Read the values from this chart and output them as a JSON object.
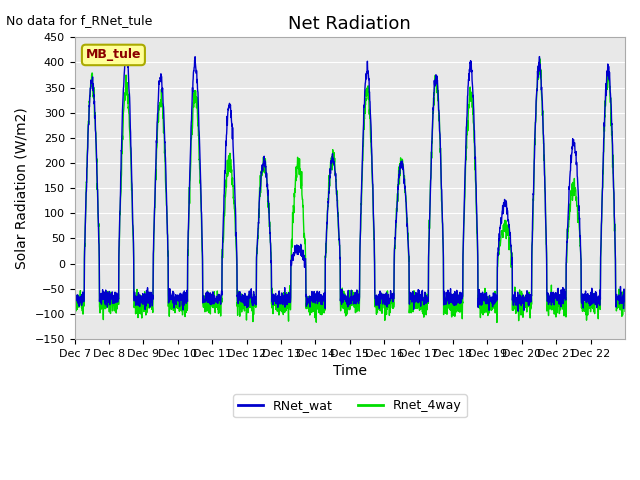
{
  "title": "Net Radiation",
  "top_left_text": "No data for f_RNet_tule",
  "box_label": "MB_tule",
  "ylabel": "Solar Radiation (W/m2)",
  "xlabel": "Time",
  "ylim": [
    -150,
    450
  ],
  "yticks": [
    -150,
    -100,
    -50,
    0,
    50,
    100,
    150,
    200,
    250,
    300,
    350,
    400,
    450
  ],
  "xtick_labels": [
    "Dec 7",
    "Dec 8",
    "Dec 9",
    "Dec 10",
    "Dec 11",
    "Dec 12",
    "Dec 13",
    "Dec 14",
    "Dec 15",
    "Dec 16",
    "Dec 17",
    "Dec 18",
    "Dec 19",
    "Dec 20",
    "Dec 21",
    "Dec 22"
  ],
  "line1_color": "#0000cc",
  "line2_color": "#00dd00",
  "line1_label": "RNet_wat",
  "line2_label": "Rnet_4way",
  "bg_color": "#e8e8e8",
  "fig_bg_color": "#ffffff",
  "title_fontsize": 13,
  "label_fontsize": 10,
  "tick_fontsize": 8,
  "box_label_color": "#8b0000",
  "box_bg_color": "#ffff99",
  "box_border_color": "#aaaa00",
  "n_days": 16,
  "samples_per_day": 144,
  "day_peaks_wat": [
    365,
    415,
    370,
    400,
    315,
    205,
    30,
    210,
    385,
    200,
    370,
    395,
    120,
    395,
    240,
    385
  ],
  "day_peaks_4way": [
    365,
    350,
    330,
    340,
    200,
    200,
    200,
    210,
    345,
    200,
    365,
    340,
    75,
    390,
    150,
    370
  ],
  "night_base_wat": -70,
  "night_base_4way": -80,
  "line_width": 1.0
}
